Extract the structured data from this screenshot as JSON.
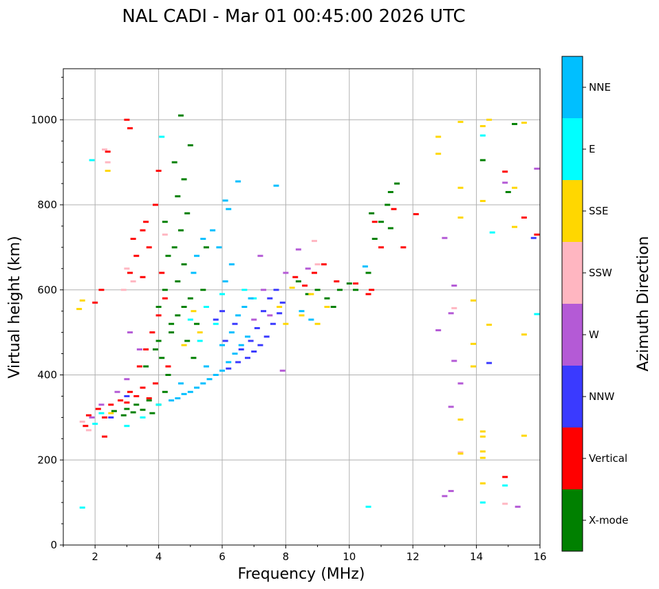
{
  "chart_data": {
    "type": "scatter",
    "title": "NAL CADI - Mar 01 00:45:00 2026 UTC",
    "xlabel": "Frequency (MHz)",
    "ylabel": "Virtual height (km)",
    "xlim": [
      1,
      16
    ],
    "ylim": [
      0,
      1120
    ],
    "xticks": [
      2,
      4,
      6,
      8,
      10,
      12,
      14,
      16
    ],
    "yticks": [
      0,
      200,
      400,
      600,
      800,
      1000
    ],
    "grid": true,
    "colorbar": {
      "label": "Azimuth Direction",
      "position": "right",
      "categories": [
        {
          "name": "X-mode",
          "color": "#008000"
        },
        {
          "name": "Vertical",
          "color": "#ff0000"
        },
        {
          "name": "NNW",
          "color": "#3a3aff"
        },
        {
          "name": "W",
          "color": "#b45ad6"
        },
        {
          "name": "SSW",
          "color": "#ffb6c1"
        },
        {
          "name": "SSE",
          "color": "#ffd700"
        },
        {
          "name": "E",
          "color": "#00ffff"
        },
        {
          "name": "NNE",
          "color": "#00bfff"
        }
      ]
    },
    "series": [
      {
        "name": "X-mode",
        "points": [
          [
            2.6,
            315
          ],
          [
            2.9,
            305
          ],
          [
            3.0,
            320
          ],
          [
            3.2,
            312
          ],
          [
            3.3,
            330
          ],
          [
            3.5,
            318
          ],
          [
            3.7,
            340
          ],
          [
            3.8,
            310
          ],
          [
            4.0,
            330
          ],
          [
            4.2,
            360
          ],
          [
            4.3,
            400
          ],
          [
            4.1,
            440
          ],
          [
            4.0,
            480
          ],
          [
            4.4,
            500
          ],
          [
            4.6,
            540
          ],
          [
            4.8,
            560
          ],
          [
            5.0,
            580
          ],
          [
            4.6,
            620
          ],
          [
            4.8,
            660
          ],
          [
            4.5,
            700
          ],
          [
            4.7,
            740
          ],
          [
            4.9,
            780
          ],
          [
            4.6,
            820
          ],
          [
            4.8,
            860
          ],
          [
            4.5,
            900
          ],
          [
            5.0,
            940
          ],
          [
            4.2,
            760
          ],
          [
            4.3,
            680
          ],
          [
            4.2,
            600
          ],
          [
            4.0,
            560
          ],
          [
            4.4,
            520
          ],
          [
            3.9,
            460
          ],
          [
            3.6,
            420
          ],
          [
            5.2,
            520
          ],
          [
            5.4,
            600
          ],
          [
            5.5,
            700
          ],
          [
            4.7,
            1010
          ],
          [
            4.9,
            480
          ],
          [
            5.1,
            440
          ],
          [
            8.4,
            620
          ],
          [
            8.7,
            590
          ],
          [
            9.0,
            600
          ],
          [
            9.3,
            580
          ],
          [
            9.5,
            560
          ],
          [
            9.7,
            600
          ],
          [
            10.0,
            615
          ],
          [
            10.2,
            600
          ],
          [
            10.6,
            640
          ],
          [
            10.8,
            720
          ],
          [
            10.7,
            780
          ],
          [
            11.0,
            760
          ],
          [
            11.2,
            800
          ],
          [
            11.3,
            830
          ],
          [
            11.5,
            850
          ],
          [
            14.2,
            905
          ],
          [
            15.2,
            990
          ],
          [
            15.0,
            830
          ],
          [
            11.3,
            745
          ]
        ]
      },
      {
        "name": "Vertical",
        "points": [
          [
            1.8,
            305
          ],
          [
            2.1,
            320
          ],
          [
            2.3,
            300
          ],
          [
            2.5,
            330
          ],
          [
            2.8,
            340
          ],
          [
            3.0,
            335
          ],
          [
            3.1,
            360
          ],
          [
            3.3,
            350
          ],
          [
            3.5,
            370
          ],
          [
            3.7,
            345
          ],
          [
            3.9,
            380
          ],
          [
            3.4,
            420
          ],
          [
            3.6,
            460
          ],
          [
            3.8,
            500
          ],
          [
            4.0,
            540
          ],
          [
            4.2,
            580
          ],
          [
            4.1,
            640
          ],
          [
            3.7,
            700
          ],
          [
            3.5,
            740
          ],
          [
            3.3,
            680
          ],
          [
            3.1,
            640
          ],
          [
            3.2,
            720
          ],
          [
            3.6,
            760
          ],
          [
            3.9,
            800
          ],
          [
            4.0,
            880
          ],
          [
            3.0,
            1000
          ],
          [
            3.1,
            980
          ],
          [
            2.4,
            925
          ],
          [
            2.2,
            600
          ],
          [
            2.0,
            570
          ],
          [
            1.7,
            280
          ],
          [
            2.3,
            255
          ],
          [
            3.5,
            630
          ],
          [
            4.3,
            420
          ],
          [
            8.3,
            630
          ],
          [
            8.6,
            610
          ],
          [
            8.9,
            640
          ],
          [
            9.2,
            660
          ],
          [
            9.6,
            620
          ],
          [
            10.2,
            615
          ],
          [
            10.6,
            590
          ],
          [
            10.8,
            760
          ],
          [
            11.0,
            700
          ],
          [
            11.4,
            790
          ],
          [
            11.7,
            700
          ],
          [
            12.1,
            778
          ],
          [
            14.9,
            160
          ],
          [
            14.9,
            878
          ],
          [
            15.5,
            770
          ],
          [
            15.9,
            730
          ],
          [
            10.7,
            600
          ]
        ]
      },
      {
        "name": "NNW",
        "points": [
          [
            6.2,
            415
          ],
          [
            6.5,
            430
          ],
          [
            6.8,
            440
          ],
          [
            7.0,
            455
          ],
          [
            7.2,
            470
          ],
          [
            7.4,
            490
          ],
          [
            7.6,
            520
          ],
          [
            7.8,
            545
          ],
          [
            7.1,
            510
          ],
          [
            6.9,
            480
          ],
          [
            6.6,
            460
          ],
          [
            7.3,
            550
          ],
          [
            7.5,
            580
          ],
          [
            7.7,
            600
          ],
          [
            6.4,
            520
          ],
          [
            6.1,
            480
          ],
          [
            6.0,
            550
          ],
          [
            5.8,
            530
          ],
          [
            14.4,
            428
          ],
          [
            15.8,
            722
          ],
          [
            3.0,
            350
          ],
          [
            2.5,
            300
          ],
          [
            7.9,
            570
          ]
        ]
      },
      {
        "name": "W",
        "points": [
          [
            1.9,
            300
          ],
          [
            2.2,
            330
          ],
          [
            2.7,
            360
          ],
          [
            3.0,
            390
          ],
          [
            3.4,
            460
          ],
          [
            3.1,
            500
          ],
          [
            7.0,
            530
          ],
          [
            7.3,
            600
          ],
          [
            7.5,
            540
          ],
          [
            7.2,
            680
          ],
          [
            8.0,
            640
          ],
          [
            8.4,
            695
          ],
          [
            8.7,
            650
          ],
          [
            13.3,
            610
          ],
          [
            13.2,
            545
          ],
          [
            13.3,
            433
          ],
          [
            13.2,
            325
          ],
          [
            12.8,
            505
          ],
          [
            13.0,
            115
          ],
          [
            13.2,
            127
          ],
          [
            15.3,
            90
          ],
          [
            15.9,
            885
          ],
          [
            13.0,
            722
          ],
          [
            14.9,
            852
          ],
          [
            13.5,
            380
          ],
          [
            7.9,
            410
          ]
        ]
      },
      {
        "name": "SSW",
        "points": [
          [
            1.6,
            290
          ],
          [
            1.8,
            270
          ],
          [
            2.4,
            900
          ],
          [
            2.3,
            930
          ],
          [
            3.0,
            650
          ],
          [
            3.2,
            620
          ],
          [
            2.9,
            600
          ],
          [
            8.9,
            715
          ],
          [
            9.0,
            660
          ],
          [
            14.9,
            97
          ],
          [
            13.5,
            218
          ],
          [
            13.3,
            557
          ],
          [
            4.2,
            730
          ]
        ]
      },
      {
        "name": "SSE",
        "points": [
          [
            1.5,
            555
          ],
          [
            1.6,
            575
          ],
          [
            2.4,
            880
          ],
          [
            2.5,
            310
          ],
          [
            5.1,
            550
          ],
          [
            5.3,
            500
          ],
          [
            7.8,
            560
          ],
          [
            8.0,
            520
          ],
          [
            8.2,
            605
          ],
          [
            8.5,
            540
          ],
          [
            8.8,
            590
          ],
          [
            9.0,
            520
          ],
          [
            9.3,
            560
          ],
          [
            12.8,
            920
          ],
          [
            12.8,
            960
          ],
          [
            13.5,
            995
          ],
          [
            13.5,
            840
          ],
          [
            13.5,
            770
          ],
          [
            13.5,
            295
          ],
          [
            13.5,
            215
          ],
          [
            13.9,
            575
          ],
          [
            13.9,
            473
          ],
          [
            13.9,
            420
          ],
          [
            14.2,
            985
          ],
          [
            14.2,
            809
          ],
          [
            14.2,
            267
          ],
          [
            14.2,
            255
          ],
          [
            14.2,
            220
          ],
          [
            14.2,
            205
          ],
          [
            14.2,
            145
          ],
          [
            14.4,
            518
          ],
          [
            14.4,
            1000
          ],
          [
            15.2,
            840
          ],
          [
            15.2,
            748
          ],
          [
            15.5,
            993
          ],
          [
            15.5,
            495
          ],
          [
            15.5,
            257
          ],
          [
            4.8,
            470
          ]
        ]
      },
      {
        "name": "E",
        "points": [
          [
            1.6,
            88
          ],
          [
            1.9,
            905
          ],
          [
            2.0,
            285
          ],
          [
            2.2,
            310
          ],
          [
            3.0,
            280
          ],
          [
            3.5,
            300
          ],
          [
            4.0,
            330
          ],
          [
            4.1,
            960
          ],
          [
            5.0,
            530
          ],
          [
            5.3,
            480
          ],
          [
            5.8,
            520
          ],
          [
            6.0,
            590
          ],
          [
            6.7,
            600
          ],
          [
            10.6,
            90
          ],
          [
            14.2,
            963
          ],
          [
            14.2,
            100
          ],
          [
            14.9,
            140
          ],
          [
            15.9,
            543
          ],
          [
            14.5,
            735
          ],
          [
            5.5,
            560
          ],
          [
            7.0,
            580
          ]
        ]
      },
      {
        "name": "NNE",
        "points": [
          [
            4.4,
            340
          ],
          [
            4.6,
            345
          ],
          [
            4.8,
            355
          ],
          [
            5.0,
            360
          ],
          [
            5.2,
            370
          ],
          [
            5.4,
            380
          ],
          [
            5.6,
            390
          ],
          [
            5.8,
            400
          ],
          [
            6.0,
            410
          ],
          [
            6.2,
            430
          ],
          [
            6.4,
            450
          ],
          [
            6.6,
            470
          ],
          [
            6.8,
            490
          ],
          [
            6.3,
            500
          ],
          [
            6.5,
            540
          ],
          [
            6.7,
            560
          ],
          [
            6.9,
            580
          ],
          [
            6.1,
            620
          ],
          [
            6.3,
            660
          ],
          [
            5.9,
            700
          ],
          [
            5.7,
            740
          ],
          [
            6.2,
            790
          ],
          [
            6.1,
            810
          ],
          [
            6.5,
            855
          ],
          [
            7.7,
            845
          ],
          [
            5.4,
            720
          ],
          [
            5.2,
            680
          ],
          [
            5.1,
            640
          ],
          [
            6.0,
            470
          ],
          [
            5.5,
            420
          ],
          [
            4.7,
            380
          ],
          [
            8.5,
            550
          ],
          [
            8.8,
            530
          ],
          [
            10.5,
            655
          ]
        ]
      }
    ]
  }
}
